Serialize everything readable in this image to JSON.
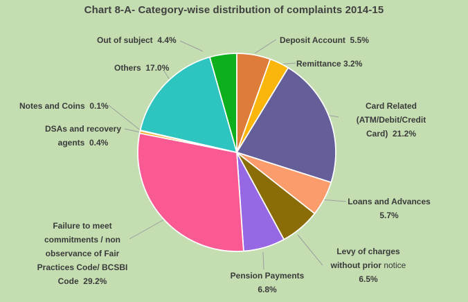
{
  "chart_data": {
    "type": "pie",
    "title": "Chart 8-A- Category-wise distribution of complaints 2014-15",
    "start_angle_deg": 0,
    "direction": "clockwise",
    "legend": "none",
    "colors": {
      "background": "#C4DEB2",
      "title": "#3F3F3F",
      "label": "#3A3A3A",
      "leader_line": "#9C9C9C",
      "slice_border": "#FFFFFF"
    },
    "slices": [
      {
        "id": "deposit-account",
        "name": "Deposit Account",
        "value": 5.5,
        "pct": "5.5%",
        "color": "#DE7D39",
        "label_lines": [
          "Deposit Account  5.5%"
        ]
      },
      {
        "id": "remittance",
        "name": "Remittance",
        "value": 3.2,
        "pct": "3.2%",
        "color": "#FBB60B",
        "label_lines": [
          "Remittance 3.2%"
        ]
      },
      {
        "id": "card-related",
        "name": "Card Related (ATM/Debit/Credit Card)",
        "value": 21.2,
        "pct": "21.2%",
        "color": "#645F98",
        "label_lines": [
          "Card Related",
          "(ATM/Debit/Credit",
          "Card)  21.2%"
        ]
      },
      {
        "id": "loans-and-advances",
        "name": "Loans and Advances",
        "value": 5.7,
        "pct": "5.7%",
        "color": "#FB9C6C",
        "label_lines": [
          "Loans and Advances",
          "5.7%"
        ]
      },
      {
        "id": "levy-of-charges",
        "name": "Levy of charges without prior notice",
        "value": 6.5,
        "pct": "6.5%",
        "color": "#8A6D06",
        "label_lines": [
          "Levy of charges",
          "without prior",
          "6.5%"
        ],
        "regular_word": "notice"
      },
      {
        "id": "pension-payments",
        "name": "Pension Payments",
        "value": 6.8,
        "pct": "6.8%",
        "color": "#9768E3",
        "label_lines": [
          "Pension Payments",
          "6.8%"
        ]
      },
      {
        "id": "failure-to-meet-commitments",
        "name": "Failure to meet commitments / non observance of Fair Practices Code/ BCSBI Code",
        "value": 29.2,
        "pct": "29.2%",
        "color": "#FA5A93",
        "label_lines": [
          "Failure to meet",
          "commitments / non",
          "observance of Fair",
          "Practices Code/ BCSBI",
          "Code  29.2%"
        ]
      },
      {
        "id": "dsas-and-recovery-agents",
        "name": "DSAs and recovery agents",
        "value": 0.4,
        "pct": "0.4%",
        "color": "#F2A71B",
        "label_lines": [
          "DSAs and recovery",
          "agents  0.4%"
        ]
      },
      {
        "id": "notes-and-coins",
        "name": "Notes and Coins",
        "value": 0.1,
        "pct": "0.1%",
        "color": "#E2574C",
        "label_lines": [
          "Notes and Coins  0.1%"
        ]
      },
      {
        "id": "others",
        "name": "Others",
        "value": 17.0,
        "pct": "17.0%",
        "color": "#2EC4BF",
        "label_lines": [
          "Others  17.0%"
        ]
      },
      {
        "id": "out-of-subject",
        "name": "Out of subject",
        "value": 4.4,
        "pct": "4.4%",
        "color": "#0DAF1C",
        "label_lines": [
          "Out of subject  4.4%"
        ]
      }
    ]
  }
}
